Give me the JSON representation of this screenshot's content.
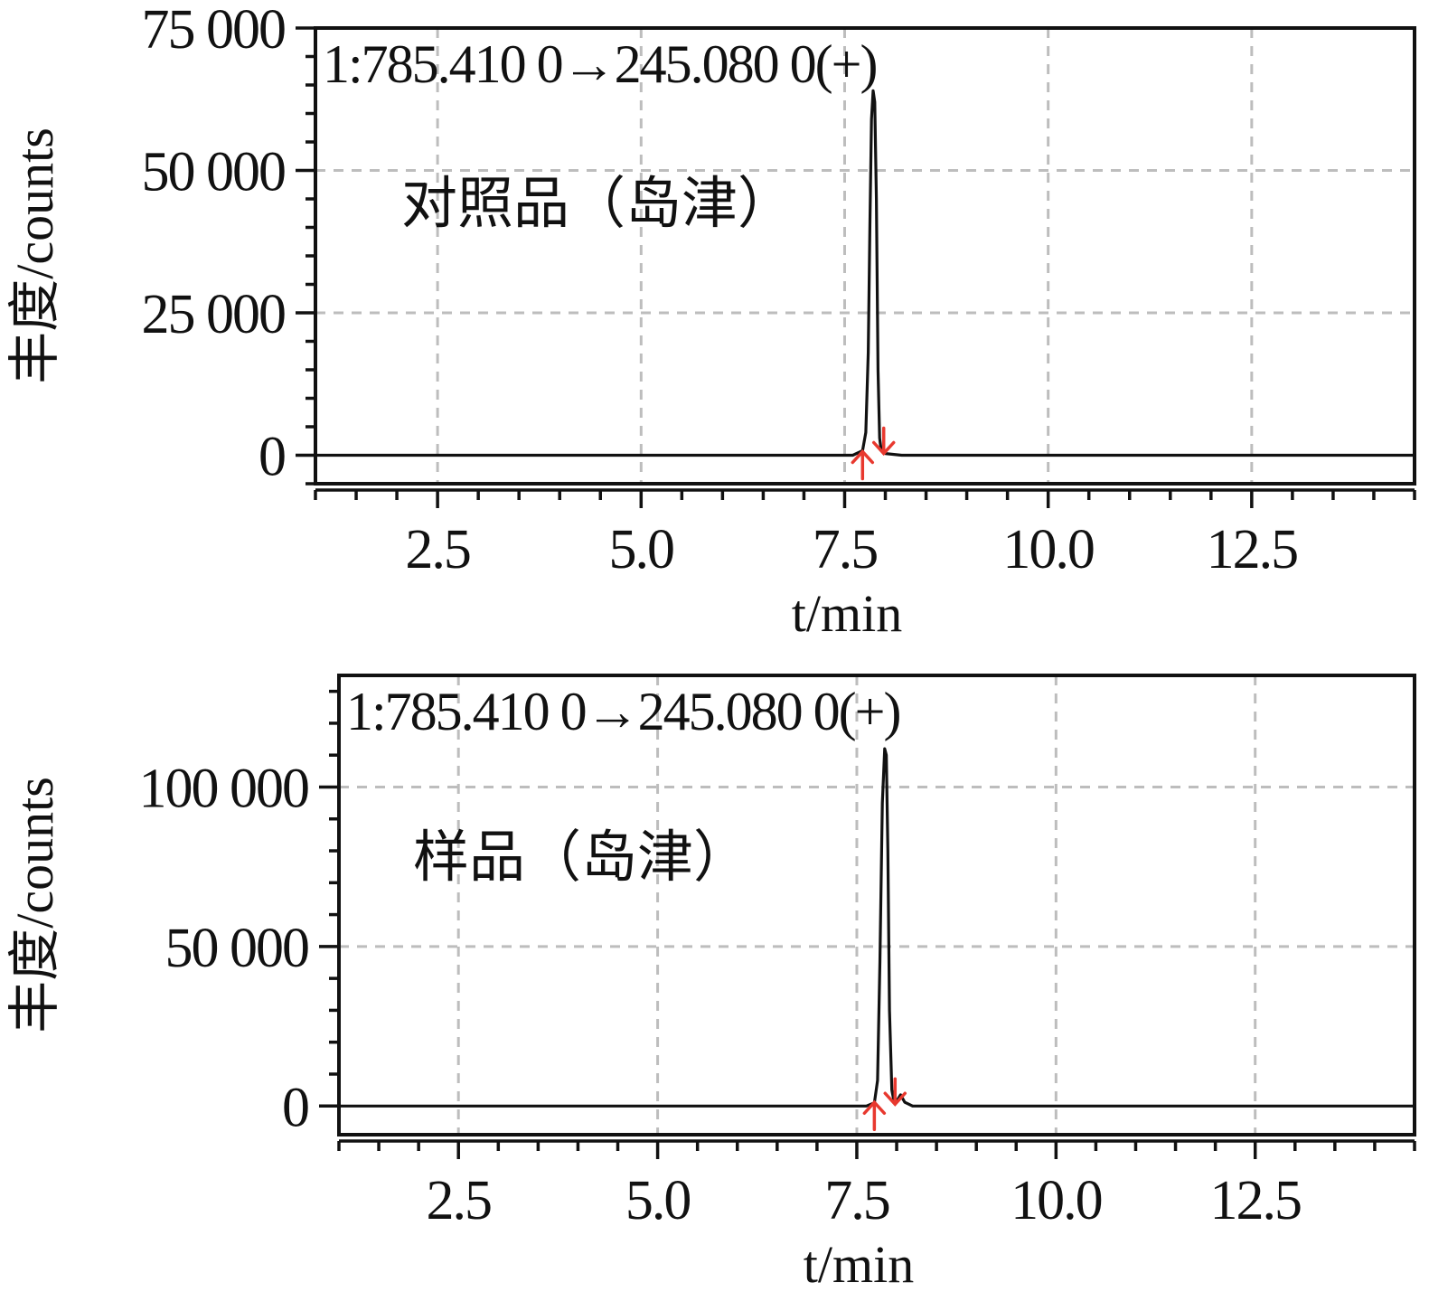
{
  "chart_data": [
    {
      "type": "line",
      "trace_label": "1:785.410 0→245.080 0(+)",
      "annotation": "对照品（岛津）",
      "xlabel": "t/min",
      "ylabel": "丰度/counts",
      "xlim": [
        1.0,
        14.5
      ],
      "ylim": [
        -5000,
        75000
      ],
      "x_ticks": [
        2.5,
        5.0,
        7.5,
        10.0,
        12.5
      ],
      "x_tick_labels": [
        "2.5",
        "5.0",
        "7.5",
        "10.0",
        "12.5"
      ],
      "y_ticks": [
        0,
        25000,
        50000,
        75000
      ],
      "y_tick_labels": [
        "0",
        "25 000",
        "50 000",
        "75 000"
      ],
      "grid": true,
      "series": [
        {
          "x": [
            1.0,
            7.6,
            7.72,
            7.76,
            7.79,
            7.81,
            7.83,
            7.85,
            7.87,
            7.89,
            7.91,
            7.93,
            7.95,
            8.0,
            8.2,
            10.2,
            14.5
          ],
          "y": [
            0,
            0,
            800,
            4000,
            18000,
            40000,
            59000,
            64000,
            62000,
            45000,
            15000,
            3000,
            800,
            300,
            0,
            0,
            0
          ]
        }
      ],
      "peak_markers": [
        7.72,
        7.98
      ],
      "marker_color": "#e8392f"
    },
    {
      "type": "line",
      "trace_label": "1:785.410 0→245.080 0(+)",
      "annotation": "样品（岛津）",
      "xlabel": "t/min",
      "ylabel": "丰度/counts",
      "xlim": [
        1.0,
        14.5
      ],
      "ylim": [
        -9000,
        135000
      ],
      "x_ticks": [
        2.5,
        5.0,
        7.5,
        10.0,
        12.5
      ],
      "x_tick_labels": [
        "2.5",
        "5.0",
        "7.5",
        "10.0",
        "12.5"
      ],
      "y_ticks": [
        0,
        50000,
        100000
      ],
      "y_tick_labels": [
        "0",
        "50 000",
        "100 000"
      ],
      "grid": true,
      "series": [
        {
          "x": [
            1.0,
            7.62,
            7.72,
            7.76,
            7.79,
            7.82,
            7.85,
            7.87,
            7.89,
            7.91,
            7.94,
            7.97,
            8.0,
            8.05,
            8.1,
            8.2,
            14.5
          ],
          "y": [
            0,
            0,
            1000,
            8000,
            45000,
            95000,
            112000,
            110000,
            80000,
            30000,
            5000,
            1000,
            1500,
            3500,
            1200,
            0,
            0
          ]
        }
      ],
      "peak_markers": [
        7.72,
        7.98
      ],
      "marker_color": "#e8392f"
    }
  ]
}
